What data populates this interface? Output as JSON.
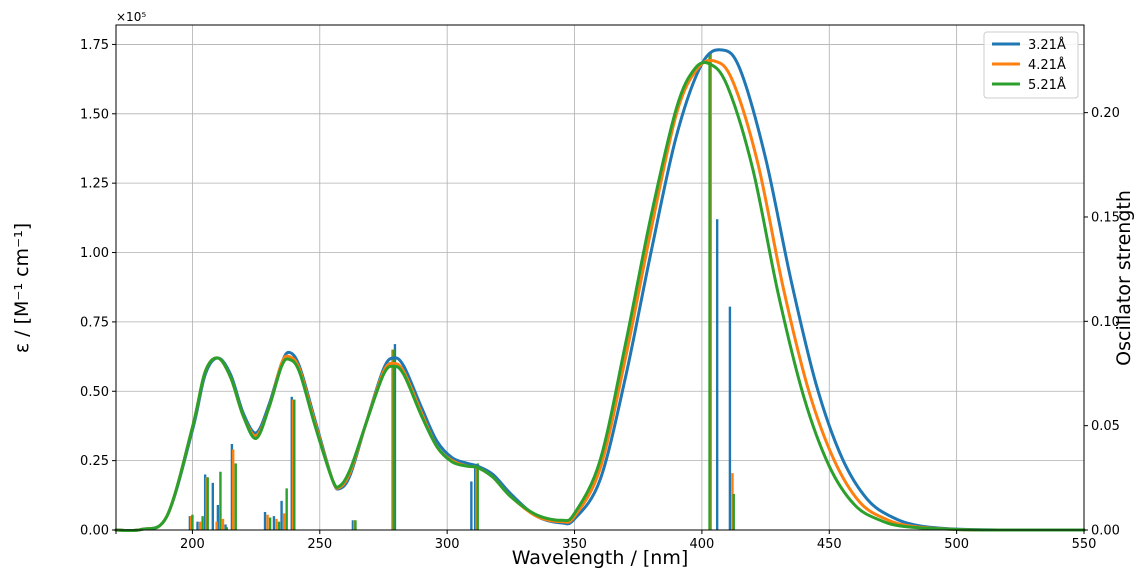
{
  "chart_data": {
    "type": "line",
    "xlabel": "Wavelength / [nm]",
    "ylabel": "ε / [M⁻¹ cm⁻¹]",
    "y2label": "Oscillator strength",
    "y_scale_note": "×10⁵",
    "xlim": [
      170,
      550
    ],
    "ylim": [
      0,
      1.82
    ],
    "y2lim": [
      0,
      0.242
    ],
    "xticks": [
      "200",
      "250",
      "300",
      "350",
      "400",
      "450",
      "500",
      "550"
    ],
    "yticks": [
      "0.00",
      "0.25",
      "0.50",
      "0.75",
      "1.00",
      "1.25",
      "1.50",
      "1.75"
    ],
    "y2ticks": [
      "0.00",
      "0.05",
      "0.10",
      "0.15",
      "0.20"
    ],
    "grid": true,
    "legend_position": "top-right",
    "series": [
      {
        "name": "3.21Å",
        "color": "#1f77b4",
        "curve": [
          [
            170,
            0.0
          ],
          [
            180,
            0.002
          ],
          [
            190,
            0.05
          ],
          [
            200,
            0.36
          ],
          [
            205,
            0.56
          ],
          [
            210,
            0.62
          ],
          [
            215,
            0.56
          ],
          [
            220,
            0.42
          ],
          [
            225,
            0.35
          ],
          [
            230,
            0.45
          ],
          [
            235,
            0.6
          ],
          [
            238,
            0.64
          ],
          [
            242,
            0.59
          ],
          [
            248,
            0.4
          ],
          [
            255,
            0.18
          ],
          [
            258,
            0.15
          ],
          [
            262,
            0.2
          ],
          [
            268,
            0.38
          ],
          [
            275,
            0.58
          ],
          [
            279,
            0.62
          ],
          [
            283,
            0.59
          ],
          [
            290,
            0.44
          ],
          [
            296,
            0.32
          ],
          [
            302,
            0.26
          ],
          [
            308,
            0.24
          ],
          [
            312,
            0.23
          ],
          [
            318,
            0.2
          ],
          [
            325,
            0.13
          ],
          [
            335,
            0.05
          ],
          [
            345,
            0.025
          ],
          [
            350,
            0.04
          ],
          [
            360,
            0.18
          ],
          [
            370,
            0.55
          ],
          [
            380,
            1.0
          ],
          [
            390,
            1.42
          ],
          [
            400,
            1.68
          ],
          [
            408,
            1.73
          ],
          [
            415,
            1.66
          ],
          [
            425,
            1.34
          ],
          [
            435,
            0.9
          ],
          [
            445,
            0.52
          ],
          [
            455,
            0.26
          ],
          [
            465,
            0.11
          ],
          [
            475,
            0.045
          ],
          [
            485,
            0.016
          ],
          [
            500,
            0.003
          ],
          [
            520,
            0.0
          ],
          [
            550,
            0.0
          ]
        ],
        "sticks": [
          [
            199,
            0.05
          ],
          [
            202,
            0.03
          ],
          [
            205,
            0.2
          ],
          [
            208,
            0.17
          ],
          [
            210,
            0.09
          ],
          [
            213,
            0.02
          ],
          [
            215.5,
            0.31
          ],
          [
            228.5,
            0.065
          ],
          [
            232,
            0.05
          ],
          [
            235,
            0.105
          ],
          [
            239,
            0.48
          ],
          [
            263,
            0.035
          ],
          [
            279.5,
            0.67
          ],
          [
            309.5,
            0.175
          ],
          [
            311,
            0.23
          ],
          [
            406,
            1.12
          ],
          [
            411,
            0.805
          ]
        ]
      },
      {
        "name": "4.21Å",
        "color": "#ff7f0e",
        "curve": [
          [
            170,
            0.0
          ],
          [
            180,
            0.002
          ],
          [
            190,
            0.05
          ],
          [
            200,
            0.37
          ],
          [
            205,
            0.57
          ],
          [
            210,
            0.62
          ],
          [
            215,
            0.55
          ],
          [
            220,
            0.41
          ],
          [
            225,
            0.34
          ],
          [
            230,
            0.44
          ],
          [
            235,
            0.6
          ],
          [
            238,
            0.625
          ],
          [
            242,
            0.58
          ],
          [
            248,
            0.39
          ],
          [
            255,
            0.18
          ],
          [
            258,
            0.155
          ],
          [
            262,
            0.21
          ],
          [
            268,
            0.38
          ],
          [
            275,
            0.57
          ],
          [
            279,
            0.6
          ],
          [
            283,
            0.57
          ],
          [
            290,
            0.42
          ],
          [
            296,
            0.3
          ],
          [
            302,
            0.25
          ],
          [
            308,
            0.23
          ],
          [
            312,
            0.225
          ],
          [
            318,
            0.19
          ],
          [
            325,
            0.12
          ],
          [
            335,
            0.05
          ],
          [
            345,
            0.03
          ],
          [
            350,
            0.05
          ],
          [
            360,
            0.22
          ],
          [
            370,
            0.62
          ],
          [
            380,
            1.08
          ],
          [
            390,
            1.5
          ],
          [
            398,
            1.66
          ],
          [
            405,
            1.69
          ],
          [
            412,
            1.62
          ],
          [
            422,
            1.32
          ],
          [
            432,
            0.87
          ],
          [
            442,
            0.5
          ],
          [
            452,
            0.25
          ],
          [
            462,
            0.1
          ],
          [
            472,
            0.04
          ],
          [
            482,
            0.014
          ],
          [
            500,
            0.002
          ],
          [
            520,
            0.0
          ],
          [
            550,
            0.0
          ]
        ],
        "sticks": [
          [
            199.5,
            0.05
          ],
          [
            203,
            0.03
          ],
          [
            205.5,
            0.19
          ],
          [
            209.5,
            0.03
          ],
          [
            212,
            0.04
          ],
          [
            216,
            0.29
          ],
          [
            229.5,
            0.055
          ],
          [
            233,
            0.04
          ],
          [
            236,
            0.06
          ],
          [
            239.5,
            0.47
          ],
          [
            263.5,
            0.035
          ],
          [
            278.5,
            0.65
          ],
          [
            311.5,
            0.23
          ],
          [
            403.5,
            1.72
          ],
          [
            412,
            0.205
          ]
        ]
      },
      {
        "name": "5.21Å",
        "color": "#2ca02c",
        "curve": [
          [
            170,
            0.0
          ],
          [
            180,
            0.002
          ],
          [
            190,
            0.05
          ],
          [
            200,
            0.37
          ],
          [
            205,
            0.57
          ],
          [
            210,
            0.62
          ],
          [
            215,
            0.55
          ],
          [
            220,
            0.41
          ],
          [
            225,
            0.33
          ],
          [
            230,
            0.44
          ],
          [
            235,
            0.59
          ],
          [
            238,
            0.615
          ],
          [
            242,
            0.57
          ],
          [
            248,
            0.38
          ],
          [
            255,
            0.18
          ],
          [
            258,
            0.16
          ],
          [
            262,
            0.22
          ],
          [
            268,
            0.38
          ],
          [
            275,
            0.56
          ],
          [
            279,
            0.59
          ],
          [
            283,
            0.56
          ],
          [
            290,
            0.41
          ],
          [
            296,
            0.3
          ],
          [
            302,
            0.245
          ],
          [
            308,
            0.23
          ],
          [
            312,
            0.225
          ],
          [
            318,
            0.19
          ],
          [
            325,
            0.12
          ],
          [
            335,
            0.055
          ],
          [
            345,
            0.035
          ],
          [
            350,
            0.06
          ],
          [
            360,
            0.25
          ],
          [
            370,
            0.67
          ],
          [
            380,
            1.13
          ],
          [
            390,
            1.52
          ],
          [
            397,
            1.66
          ],
          [
            403,
            1.68
          ],
          [
            410,
            1.6
          ],
          [
            420,
            1.3
          ],
          [
            430,
            0.85
          ],
          [
            440,
            0.48
          ],
          [
            450,
            0.23
          ],
          [
            460,
            0.09
          ],
          [
            470,
            0.035
          ],
          [
            480,
            0.012
          ],
          [
            500,
            0.002
          ],
          [
            520,
            0.0
          ],
          [
            550,
            0.0
          ]
        ],
        "sticks": [
          [
            200,
            0.055
          ],
          [
            204,
            0.05
          ],
          [
            206,
            0.19
          ],
          [
            211,
            0.21
          ],
          [
            213.5,
            0.01
          ],
          [
            217,
            0.24
          ],
          [
            230.5,
            0.045
          ],
          [
            234,
            0.03
          ],
          [
            237,
            0.15
          ],
          [
            240,
            0.47
          ],
          [
            264,
            0.035
          ],
          [
            279,
            0.65
          ],
          [
            312,
            0.24
          ],
          [
            403,
            1.72
          ],
          [
            412.5,
            0.13
          ]
        ]
      }
    ]
  }
}
